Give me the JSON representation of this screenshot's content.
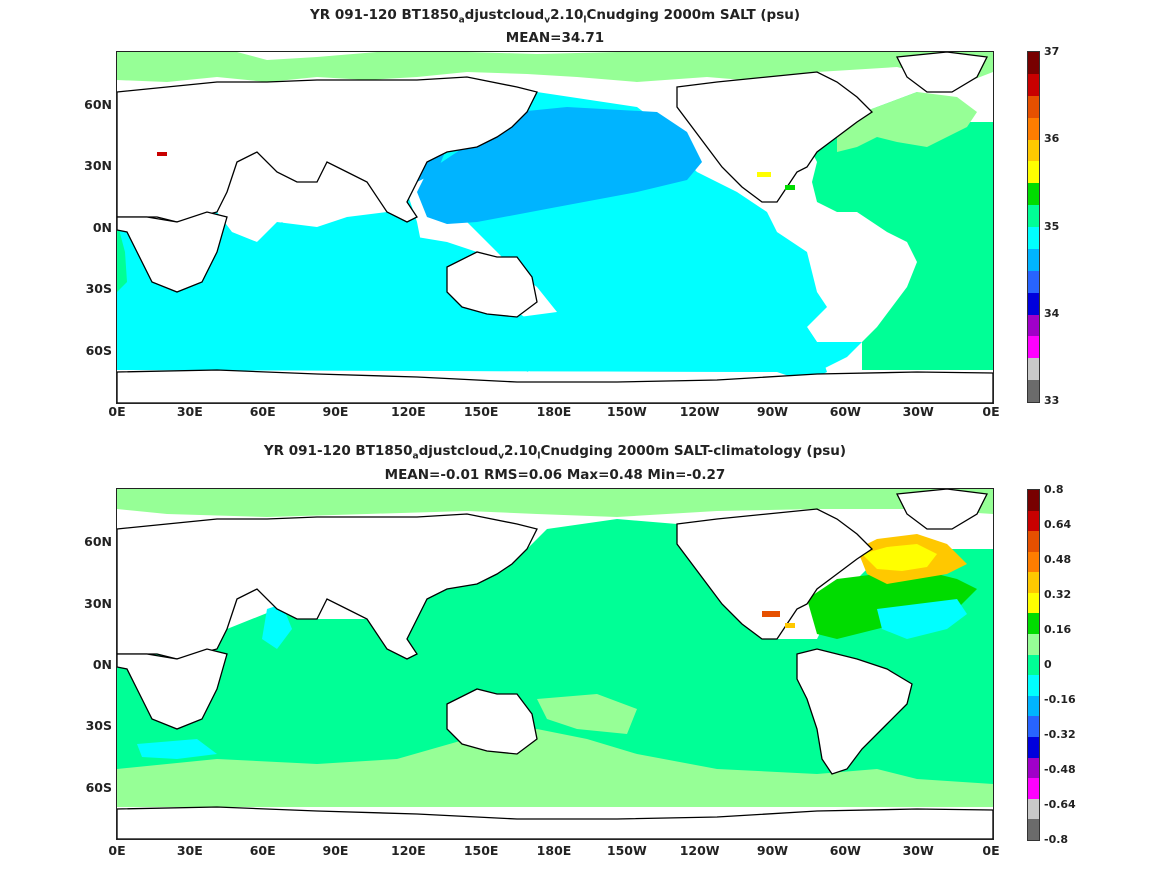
{
  "panels": [
    {
      "title_a": "YR 091-120 BT1850",
      "title_sub1": "a",
      "title_b": "djustcloud",
      "title_sub2": "v",
      "title_c": "2.10",
      "title_sub3": "l",
      "title_d": "Cnudging 2000m SALT (psu)",
      "stats": "MEAN=34.71",
      "colorbar_labels": [
        "37",
        "36",
        "35",
        "34",
        "33"
      ],
      "colors": [
        "#6b6b6b",
        "#c8c8c8",
        "#ff00ff",
        "#a000c8",
        "#0000dc",
        "#2864ff",
        "#00b4ff",
        "#00ffff",
        "#00ff96",
        "#00dc00",
        "#ffff00",
        "#ffc800",
        "#ff7d00",
        "#e65000",
        "#c80000",
        "#780000"
      ]
    },
    {
      "title_a": "YR 091-120 BT1850",
      "title_sub1": "a",
      "title_b": "djustcloud",
      "title_sub2": "v",
      "title_c": "2.10",
      "title_sub3": "l",
      "title_d": "Cnudging 2000m SALT-climatology (psu)",
      "stats": "MEAN=-0.01   RMS=0.06   Max=0.48   Min=-0.27",
      "colorbar_labels": [
        "0.8",
        "0.64",
        "0.48",
        "0.32",
        "0.16",
        "0",
        "-0.16",
        "-0.32",
        "-0.48",
        "-0.64",
        "-0.8"
      ],
      "colors": [
        "#6b6b6b",
        "#c8c8c8",
        "#ff00ff",
        "#a000c8",
        "#0000dc",
        "#2864ff",
        "#00b4ff",
        "#00ffff",
        "#00ff96",
        "#96ff96",
        "#00dc00",
        "#ffff00",
        "#ffc800",
        "#ff7d00",
        "#e65000",
        "#c80000",
        "#780000"
      ]
    }
  ],
  "axes": {
    "x_ticks": [
      "0E",
      "30E",
      "60E",
      "90E",
      "120E",
      "150E",
      "180E",
      "150W",
      "120W",
      "90W",
      "60W",
      "30W",
      "0E"
    ],
    "y_ticks": [
      "60N",
      "30N",
      "0N",
      "30S",
      "60S"
    ]
  },
  "ocean_colors": {
    "top_base": "#00ffff",
    "top_pacific_high": "#00b4ff",
    "top_atlantic": "#00ff96",
    "top_arctic": "#96ff96",
    "bottom_base": "#00ff96",
    "bottom_light": "#96ff96",
    "bottom_cyan": "#00ffff",
    "bottom_yellow": "#ffc800"
  }
}
